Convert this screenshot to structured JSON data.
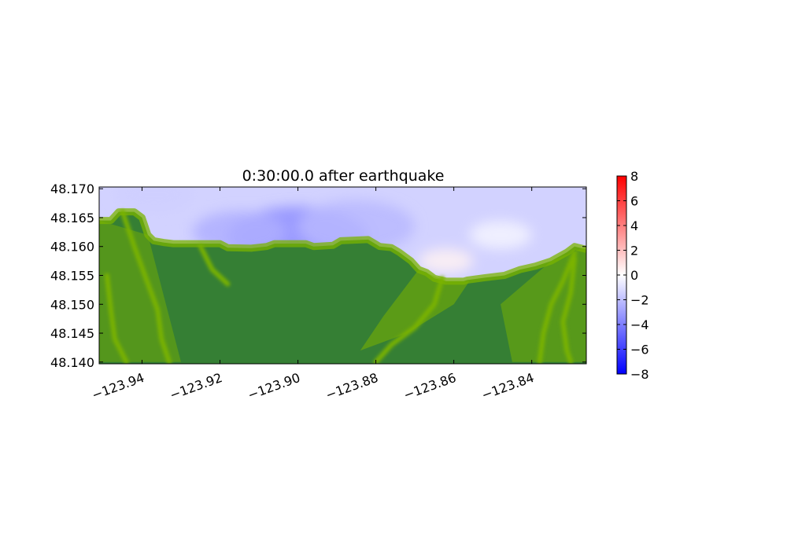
{
  "chart_data": {
    "type": "heatmap",
    "title": "0:30:00.0 after earthquake",
    "xlabel": "",
    "ylabel": "",
    "xlim": [
      -123.951,
      -123.826
    ],
    "ylim": [
      48.1397,
      48.1703
    ],
    "x_ticks": [
      -123.94,
      -123.92,
      -123.9,
      -123.88,
      -123.86,
      -123.84
    ],
    "x_tick_labels": [
      "−123.94",
      "−123.92",
      "−123.90",
      "−123.88",
      "−123.86",
      "−123.84"
    ],
    "y_ticks": [
      48.17,
      48.165,
      48.16,
      48.155,
      48.15,
      48.145,
      48.14
    ],
    "y_tick_labels": [
      "48.170",
      "48.165",
      "48.160",
      "48.155",
      "48.150",
      "48.145",
      "48.140"
    ],
    "colorbar": {
      "range": [
        -8,
        8
      ],
      "ticks": [
        8,
        6,
        4,
        2,
        0,
        -2,
        -4,
        -6,
        -8
      ],
      "tick_labels": [
        "8",
        "6",
        "4",
        "2",
        "0",
        "−2",
        "−4",
        "−6",
        "−8"
      ],
      "colormap": "bwr",
      "colors": {
        "low": "#0000ff",
        "mid": "#ffffff",
        "high": "#ff0000"
      }
    },
    "land_colors": {
      "lowland": "#357f34",
      "upland": "#7ab300"
    },
    "coastline": [
      [
        -123.951,
        48.1645
      ],
      [
        -123.948,
        48.1645
      ],
      [
        -123.946,
        48.166
      ],
      [
        -123.942,
        48.166
      ],
      [
        -123.94,
        48.165
      ],
      [
        -123.9385,
        48.162
      ],
      [
        -123.937,
        48.161
      ],
      [
        -123.9345,
        48.1607
      ],
      [
        -123.932,
        48.1605
      ],
      [
        -123.92,
        48.1605
      ],
      [
        -123.918,
        48.1598
      ],
      [
        -123.912,
        48.1597
      ],
      [
        -123.908,
        48.16
      ],
      [
        -123.906,
        48.1605
      ],
      [
        -123.898,
        48.1605
      ],
      [
        -123.896,
        48.16
      ],
      [
        -123.891,
        48.1602
      ],
      [
        -123.889,
        48.161
      ],
      [
        -123.882,
        48.1612
      ],
      [
        -123.88,
        48.1604
      ],
      [
        -123.879,
        48.16
      ],
      [
        -123.876,
        48.1598
      ],
      [
        -123.874,
        48.159
      ],
      [
        -123.871,
        48.1575
      ],
      [
        -123.869,
        48.156
      ],
      [
        -123.867,
        48.1555
      ],
      [
        -123.865,
        48.1545
      ],
      [
        -123.862,
        48.154
      ],
      [
        -123.8575,
        48.154
      ],
      [
        -123.8565,
        48.1542
      ],
      [
        -123.852,
        48.1546
      ],
      [
        -123.847,
        48.155
      ],
      [
        -123.843,
        48.156
      ],
      [
        -123.839,
        48.1566
      ],
      [
        -123.835,
        48.1575
      ],
      [
        -123.831,
        48.159
      ],
      [
        -123.829,
        48.16
      ],
      [
        -123.826,
        48.1595
      ]
    ],
    "wave_anomalies": [
      {
        "lon": -123.9,
        "lat": 48.1615,
        "value": -3.5,
        "radius": 0.018
      },
      {
        "lon": -123.915,
        "lat": 48.1625,
        "value": -2.5,
        "radius": 0.012
      },
      {
        "lon": -123.885,
        "lat": 48.1635,
        "value": -2.2,
        "radius": 0.015
      },
      {
        "lon": -123.937,
        "lat": 48.169,
        "value": -1.5,
        "radius": 0.01
      },
      {
        "lon": -123.862,
        "lat": 48.1575,
        "value": 0.4,
        "radius": 0.007
      },
      {
        "lon": -123.848,
        "lat": 48.162,
        "value": -0.3,
        "radius": 0.008
      }
    ],
    "water_base_value": -1.4,
    "rivers": [
      [
        [
          -123.945,
          48.166
        ],
        [
          -123.942,
          48.16
        ],
        [
          -123.939,
          48.1545
        ],
        [
          -123.936,
          48.149
        ],
        [
          -123.935,
          48.144
        ],
        [
          -123.933,
          48.14
        ]
      ],
      [
        [
          -123.949,
          48.155
        ],
        [
          -123.948,
          48.149
        ],
        [
          -123.947,
          48.144
        ],
        [
          -123.944,
          48.14
        ]
      ],
      [
        [
          -123.925,
          48.16
        ],
        [
          -123.922,
          48.156
        ],
        [
          -123.918,
          48.1535
        ]
      ],
      [
        [
          -123.863,
          48.1545
        ],
        [
          -123.865,
          48.15
        ],
        [
          -123.87,
          48.146
        ],
        [
          -123.876,
          48.143
        ],
        [
          -123.88,
          48.14
        ]
      ],
      [
        [
          -123.829,
          48.159
        ],
        [
          -123.832,
          48.154
        ],
        [
          -123.835,
          48.15
        ],
        [
          -123.837,
          48.145
        ],
        [
          -123.838,
          48.14
        ]
      ],
      [
        [
          -123.829,
          48.158
        ],
        [
          -123.83,
          48.152
        ],
        [
          -123.832,
          48.147
        ],
        [
          -123.831,
          48.142
        ],
        [
          -123.83,
          48.14
        ]
      ]
    ]
  }
}
